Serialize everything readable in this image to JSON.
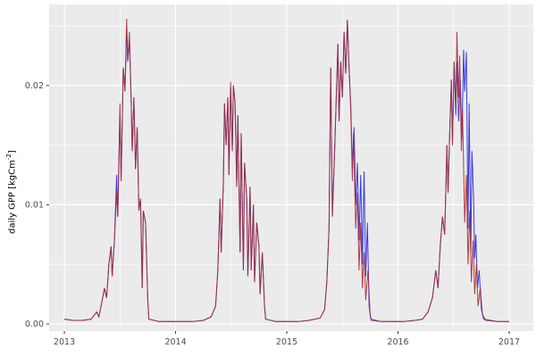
{
  "figure": {
    "ylabel_prefix": "daily GPP [kgCm",
    "ylabel_sup": "-2",
    "ylabel_suffix": "]"
  },
  "chart_data": {
    "type": "line",
    "title": "",
    "xlabel": "",
    "ylabel": "daily GPP [kgCm^-2]",
    "legend_position": "none",
    "grid": "on",
    "panel_bg": "#EBEBEB",
    "grid_color": "#FFFFFF",
    "tick_color": "#333333",
    "tick_label_color": "#4D4D4D",
    "x_domain": [
      2012.863,
      2017.217
    ],
    "y_domain": [
      -0.0006,
      0.0268
    ],
    "x_ticks": [
      2013,
      2014,
      2015,
      2016,
      2017
    ],
    "x_tick_labels": [
      "2013",
      "2014",
      "2015",
      "2016",
      "2017"
    ],
    "x_minor_ticks": [
      2013.5,
      2014.5,
      2015.5,
      2016.5
    ],
    "y_ticks": [
      0.0,
      0.01,
      0.02
    ],
    "y_tick_labels": [
      "0.00",
      "0.01",
      "0.02"
    ],
    "y_minor_ticks": [
      0.005,
      0.015,
      0.025
    ],
    "series": [
      {
        "name": "blue",
        "color": "#2828DC",
        "points": [
          [
            2013.0,
            0.0004
          ],
          [
            2013.08,
            0.0003
          ],
          [
            2013.16,
            0.0003
          ],
          [
            2013.24,
            0.0004
          ],
          [
            2013.29,
            0.001
          ],
          [
            2013.31,
            0.0006
          ],
          [
            2013.33,
            0.0015
          ],
          [
            2013.36,
            0.003
          ],
          [
            2013.38,
            0.0022
          ],
          [
            2013.4,
            0.005
          ],
          [
            2013.42,
            0.0065
          ],
          [
            2013.43,
            0.004
          ],
          [
            2013.45,
            0.007
          ],
          [
            2013.47,
            0.0125
          ],
          [
            2013.48,
            0.009
          ],
          [
            2013.5,
            0.0175
          ],
          [
            2013.51,
            0.012
          ],
          [
            2013.53,
            0.0215
          ],
          [
            2013.545,
            0.0195
          ],
          [
            2013.56,
            0.0248
          ],
          [
            2013.57,
            0.022
          ],
          [
            2013.585,
            0.0238
          ],
          [
            2013.6,
            0.019
          ],
          [
            2013.61,
            0.0145
          ],
          [
            2013.625,
            0.019
          ],
          [
            2013.64,
            0.013
          ],
          [
            2013.655,
            0.0165
          ],
          [
            2013.67,
            0.0095
          ],
          [
            2013.685,
            0.0105
          ],
          [
            2013.7,
            0.003
          ],
          [
            2013.71,
            0.0095
          ],
          [
            2013.73,
            0.0085
          ],
          [
            2013.75,
            0.002
          ],
          [
            2013.76,
            0.0004
          ],
          [
            2013.85,
            0.0002
          ],
          [
            2013.95,
            0.0002
          ],
          [
            2014.05,
            0.0002
          ],
          [
            2014.15,
            0.0002
          ],
          [
            2014.25,
            0.0003
          ],
          [
            2014.32,
            0.0006
          ],
          [
            2014.36,
            0.0015
          ],
          [
            2014.38,
            0.0045
          ],
          [
            2014.4,
            0.0105
          ],
          [
            2014.41,
            0.006
          ],
          [
            2014.43,
            0.012
          ],
          [
            2014.44,
            0.0185
          ],
          [
            2014.455,
            0.015
          ],
          [
            2014.47,
            0.019
          ],
          [
            2014.48,
            0.0125
          ],
          [
            2014.495,
            0.0198
          ],
          [
            2014.51,
            0.0145
          ],
          [
            2014.52,
            0.02
          ],
          [
            2014.535,
            0.0185
          ],
          [
            2014.55,
            0.0115
          ],
          [
            2014.56,
            0.0175
          ],
          [
            2014.58,
            0.006
          ],
          [
            2014.59,
            0.016
          ],
          [
            2014.61,
            0.0045
          ],
          [
            2014.62,
            0.0135
          ],
          [
            2014.64,
            0.0105
          ],
          [
            2014.65,
            0.004
          ],
          [
            2014.67,
            0.0115
          ],
          [
            2014.68,
            0.0045
          ],
          [
            2014.7,
            0.01
          ],
          [
            2014.71,
            0.0035
          ],
          [
            2014.73,
            0.0085
          ],
          [
            2014.75,
            0.0065
          ],
          [
            2014.76,
            0.0025
          ],
          [
            2014.78,
            0.006
          ],
          [
            2014.8,
            0.0015
          ],
          [
            2014.81,
            0.0004
          ],
          [
            2014.9,
            0.0002
          ],
          [
            2015.0,
            0.0002
          ],
          [
            2015.1,
            0.0002
          ],
          [
            2015.2,
            0.0003
          ],
          [
            2015.3,
            0.0005
          ],
          [
            2015.34,
            0.0012
          ],
          [
            2015.36,
            0.0035
          ],
          [
            2015.38,
            0.008
          ],
          [
            2015.395,
            0.0215
          ],
          [
            2015.41,
            0.009
          ],
          [
            2015.43,
            0.0145
          ],
          [
            2015.445,
            0.019
          ],
          [
            2015.46,
            0.0235
          ],
          [
            2015.47,
            0.017
          ],
          [
            2015.485,
            0.022
          ],
          [
            2015.5,
            0.019
          ],
          [
            2015.515,
            0.0245
          ],
          [
            2015.53,
            0.021
          ],
          [
            2015.545,
            0.0255
          ],
          [
            2015.56,
            0.0215
          ],
          [
            2015.575,
            0.0185
          ],
          [
            2015.59,
            0.013
          ],
          [
            2015.605,
            0.0165
          ],
          [
            2015.62,
            0.01
          ],
          [
            2015.635,
            0.0135
          ],
          [
            2015.65,
            0.007
          ],
          [
            2015.665,
            0.0125
          ],
          [
            2015.68,
            0.005
          ],
          [
            2015.695,
            0.0128
          ],
          [
            2015.71,
            0.004
          ],
          [
            2015.725,
            0.0085
          ],
          [
            2015.74,
            0.0015
          ],
          [
            2015.755,
            0.0004
          ],
          [
            2015.85,
            0.0002
          ],
          [
            2015.95,
            0.0002
          ],
          [
            2016.05,
            0.0002
          ],
          [
            2016.15,
            0.0003
          ],
          [
            2016.22,
            0.0004
          ],
          [
            2016.27,
            0.001
          ],
          [
            2016.31,
            0.0022
          ],
          [
            2016.34,
            0.0045
          ],
          [
            2016.36,
            0.003
          ],
          [
            2016.38,
            0.0065
          ],
          [
            2016.4,
            0.009
          ],
          [
            2016.42,
            0.0075
          ],
          [
            2016.44,
            0.015
          ],
          [
            2016.45,
            0.011
          ],
          [
            2016.465,
            0.016
          ],
          [
            2016.48,
            0.0205
          ],
          [
            2016.49,
            0.015
          ],
          [
            2016.505,
            0.022
          ],
          [
            2016.52,
            0.0175
          ],
          [
            2016.53,
            0.022
          ],
          [
            2016.545,
            0.017
          ],
          [
            2016.56,
            0.0205
          ],
          [
            2016.575,
            0.0155
          ],
          [
            2016.59,
            0.023
          ],
          [
            2016.6,
            0.0195
          ],
          [
            2016.615,
            0.0228
          ],
          [
            2016.63,
            0.008
          ],
          [
            2016.64,
            0.0185
          ],
          [
            2016.655,
            0.006
          ],
          [
            2016.665,
            0.0145
          ],
          [
            2016.68,
            0.0105
          ],
          [
            2016.69,
            0.0055
          ],
          [
            2016.7,
            0.0075
          ],
          [
            2016.715,
            0.003
          ],
          [
            2016.73,
            0.0045
          ],
          [
            2016.75,
            0.0012
          ],
          [
            2016.77,
            0.0004
          ],
          [
            2016.9,
            0.0002
          ],
          [
            2017.0,
            0.0002
          ]
        ]
      },
      {
        "name": "dark-red",
        "color": "#A42C34",
        "points": [
          [
            2013.0,
            0.0004
          ],
          [
            2013.08,
            0.0003
          ],
          [
            2013.16,
            0.0003
          ],
          [
            2013.24,
            0.0004
          ],
          [
            2013.29,
            0.001
          ],
          [
            2013.31,
            0.0006
          ],
          [
            2013.33,
            0.0015
          ],
          [
            2013.36,
            0.003
          ],
          [
            2013.38,
            0.0022
          ],
          [
            2013.4,
            0.005
          ],
          [
            2013.42,
            0.0065
          ],
          [
            2013.43,
            0.004
          ],
          [
            2013.45,
            0.007
          ],
          [
            2013.47,
            0.011
          ],
          [
            2013.48,
            0.009
          ],
          [
            2013.5,
            0.0185
          ],
          [
            2013.51,
            0.012
          ],
          [
            2013.53,
            0.0215
          ],
          [
            2013.545,
            0.0195
          ],
          [
            2013.56,
            0.0256
          ],
          [
            2013.57,
            0.022
          ],
          [
            2013.585,
            0.0245
          ],
          [
            2013.6,
            0.019
          ],
          [
            2013.61,
            0.0145
          ],
          [
            2013.625,
            0.019
          ],
          [
            2013.64,
            0.013
          ],
          [
            2013.655,
            0.0165
          ],
          [
            2013.67,
            0.0095
          ],
          [
            2013.685,
            0.0105
          ],
          [
            2013.7,
            0.003
          ],
          [
            2013.71,
            0.0095
          ],
          [
            2013.73,
            0.0085
          ],
          [
            2013.75,
            0.002
          ],
          [
            2013.76,
            0.0004
          ],
          [
            2013.85,
            0.0002
          ],
          [
            2013.95,
            0.0002
          ],
          [
            2014.05,
            0.0002
          ],
          [
            2014.15,
            0.0002
          ],
          [
            2014.25,
            0.0003
          ],
          [
            2014.32,
            0.0006
          ],
          [
            2014.36,
            0.0015
          ],
          [
            2014.38,
            0.0045
          ],
          [
            2014.4,
            0.0105
          ],
          [
            2014.41,
            0.006
          ],
          [
            2014.43,
            0.012
          ],
          [
            2014.44,
            0.0185
          ],
          [
            2014.455,
            0.015
          ],
          [
            2014.47,
            0.019
          ],
          [
            2014.48,
            0.0125
          ],
          [
            2014.495,
            0.0203
          ],
          [
            2014.51,
            0.0145
          ],
          [
            2014.52,
            0.02
          ],
          [
            2014.535,
            0.0185
          ],
          [
            2014.55,
            0.0115
          ],
          [
            2014.56,
            0.0175
          ],
          [
            2014.58,
            0.006
          ],
          [
            2014.59,
            0.016
          ],
          [
            2014.61,
            0.0045
          ],
          [
            2014.62,
            0.0135
          ],
          [
            2014.64,
            0.0105
          ],
          [
            2014.65,
            0.004
          ],
          [
            2014.67,
            0.0115
          ],
          [
            2014.68,
            0.0045
          ],
          [
            2014.7,
            0.01
          ],
          [
            2014.71,
            0.0035
          ],
          [
            2014.73,
            0.0085
          ],
          [
            2014.75,
            0.0065
          ],
          [
            2014.76,
            0.0025
          ],
          [
            2014.78,
            0.006
          ],
          [
            2014.8,
            0.0015
          ],
          [
            2014.81,
            0.0004
          ],
          [
            2014.9,
            0.0002
          ],
          [
            2015.0,
            0.0002
          ],
          [
            2015.1,
            0.0002
          ],
          [
            2015.2,
            0.0003
          ],
          [
            2015.3,
            0.0005
          ],
          [
            2015.34,
            0.0012
          ],
          [
            2015.36,
            0.0035
          ],
          [
            2015.38,
            0.008
          ],
          [
            2015.395,
            0.0215
          ],
          [
            2015.41,
            0.009
          ],
          [
            2015.43,
            0.0145
          ],
          [
            2015.445,
            0.019
          ],
          [
            2015.46,
            0.0235
          ],
          [
            2015.47,
            0.017
          ],
          [
            2015.485,
            0.022
          ],
          [
            2015.5,
            0.019
          ],
          [
            2015.515,
            0.0245
          ],
          [
            2015.53,
            0.021
          ],
          [
            2015.545,
            0.0255
          ],
          [
            2015.56,
            0.0215
          ],
          [
            2015.575,
            0.018
          ],
          [
            2015.59,
            0.012
          ],
          [
            2015.6,
            0.016
          ],
          [
            2015.62,
            0.008
          ],
          [
            2015.635,
            0.011
          ],
          [
            2015.65,
            0.0045
          ],
          [
            2015.665,
            0.0085
          ],
          [
            2015.68,
            0.003
          ],
          [
            2015.695,
            0.006
          ],
          [
            2015.71,
            0.002
          ],
          [
            2015.73,
            0.0045
          ],
          [
            2015.75,
            0.0008
          ],
          [
            2015.76,
            0.0003
          ],
          [
            2015.85,
            0.0002
          ],
          [
            2015.95,
            0.0002
          ],
          [
            2016.05,
            0.0002
          ],
          [
            2016.15,
            0.0003
          ],
          [
            2016.22,
            0.0004
          ],
          [
            2016.27,
            0.001
          ],
          [
            2016.31,
            0.0022
          ],
          [
            2016.34,
            0.0045
          ],
          [
            2016.36,
            0.003
          ],
          [
            2016.38,
            0.0065
          ],
          [
            2016.4,
            0.009
          ],
          [
            2016.42,
            0.0075
          ],
          [
            2016.44,
            0.015
          ],
          [
            2016.45,
            0.011
          ],
          [
            2016.465,
            0.016
          ],
          [
            2016.48,
            0.0205
          ],
          [
            2016.49,
            0.015
          ],
          [
            2016.505,
            0.022
          ],
          [
            2016.52,
            0.018
          ],
          [
            2016.53,
            0.0245
          ],
          [
            2016.545,
            0.019
          ],
          [
            2016.555,
            0.0225
          ],
          [
            2016.57,
            0.0145
          ],
          [
            2016.58,
            0.018
          ],
          [
            2016.6,
            0.0085
          ],
          [
            2016.615,
            0.0125
          ],
          [
            2016.63,
            0.005
          ],
          [
            2016.645,
            0.0095
          ],
          [
            2016.66,
            0.0035
          ],
          [
            2016.675,
            0.007
          ],
          [
            2016.69,
            0.0025
          ],
          [
            2016.705,
            0.005
          ],
          [
            2016.72,
            0.0015
          ],
          [
            2016.74,
            0.003
          ],
          [
            2016.76,
            0.0008
          ],
          [
            2016.79,
            0.0003
          ],
          [
            2016.9,
            0.0002
          ],
          [
            2017.0,
            0.0002
          ]
        ]
      }
    ]
  }
}
